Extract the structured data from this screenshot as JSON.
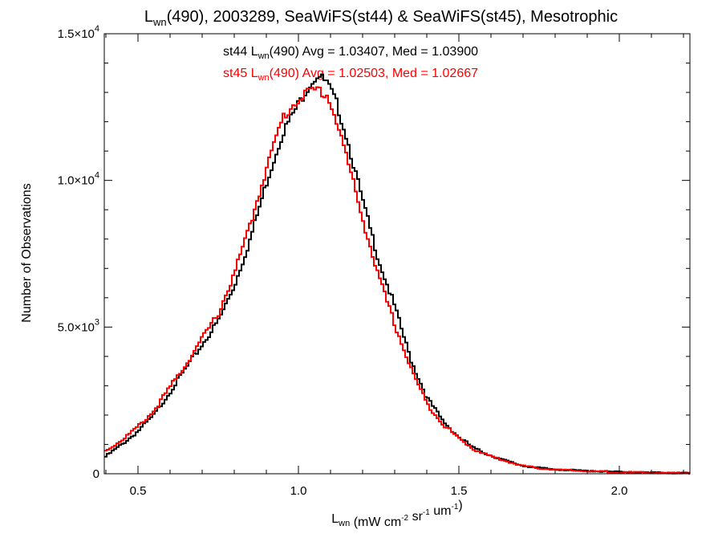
{
  "chart_data": {
    "type": "line",
    "title": {
      "main": "L",
      "sub": "wn",
      "rest": "(490), 2003289, SeaWiFS(st44) & SeaWiFS(st45), Mesotrophic"
    },
    "xlabel": {
      "main": "L",
      "sub": "wn",
      "units": [
        {
          "text": " (mW cm",
          "sup": "-2"
        },
        {
          "text": " sr",
          "sup": "-1"
        },
        {
          "text": " um",
          "sup": "-1"
        },
        {
          "text": ")",
          "sup": ""
        }
      ]
    },
    "ylabel": "Number of Observations",
    "xlim": [
      0.395,
      2.22
    ],
    "ylim": [
      0,
      15000
    ],
    "x_ticks": [
      {
        "value": 0.5,
        "label": "0.5"
      },
      {
        "value": 1.0,
        "label": "1.0"
      },
      {
        "value": 1.5,
        "label": "1.5"
      },
      {
        "value": 2.0,
        "label": "2.0"
      }
    ],
    "y_ticks": [
      {
        "value": 0,
        "mantissa": "0",
        "exp": ""
      },
      {
        "value": 5000,
        "mantissa": "5.0×10",
        "exp": "3"
      },
      {
        "value": 10000,
        "mantissa": "1.0×10",
        "exp": "4"
      },
      {
        "value": 15000,
        "mantissa": "1.5×10",
        "exp": "4"
      }
    ],
    "series": [
      {
        "name": "st44",
        "color": "#000000",
        "annotation": {
          "pre": "st44 L",
          "sub": "wn",
          "post": "(490) Avg = 1.03407, Med = 1.03900"
        },
        "avg": 1.03407,
        "median": 1.039,
        "x": [
          0.395,
          0.45,
          0.5,
          0.55,
          0.6,
          0.65,
          0.7,
          0.75,
          0.8,
          0.85,
          0.9,
          0.95,
          1.0,
          1.03,
          1.06,
          1.09,
          1.12,
          1.15,
          1.2,
          1.25,
          1.3,
          1.35,
          1.4,
          1.45,
          1.5,
          1.55,
          1.6,
          1.65,
          1.7,
          1.75,
          1.8,
          1.9,
          2.0,
          2.1,
          2.22
        ],
        "y": [
          550,
          1000,
          1450,
          2000,
          2800,
          3600,
          4400,
          5200,
          6400,
          8000,
          9900,
          11600,
          12600,
          13200,
          13600,
          13300,
          12600,
          11500,
          9300,
          7300,
          5700,
          3900,
          2600,
          1800,
          1250,
          850,
          620,
          430,
          270,
          200,
          150,
          95,
          60,
          35,
          20
        ]
      },
      {
        "name": "st45",
        "color": "#ff0000",
        "annotation": {
          "pre": "st45 L",
          "sub": "wn",
          "post": "(490) Avg = 1.02503, Med = 1.02667"
        },
        "avg": 1.02503,
        "median": 1.02667,
        "x": [
          0.395,
          0.45,
          0.5,
          0.55,
          0.6,
          0.65,
          0.7,
          0.75,
          0.8,
          0.85,
          0.9,
          0.95,
          1.0,
          1.03,
          1.06,
          1.09,
          1.12,
          1.15,
          1.2,
          1.25,
          1.3,
          1.35,
          1.4,
          1.45,
          1.5,
          1.55,
          1.6,
          1.65,
          1.7,
          1.75,
          1.8,
          1.9,
          2.0,
          2.1,
          2.22
        ],
        "y": [
          750,
          1150,
          1600,
          2150,
          2950,
          3750,
          4600,
          5450,
          6800,
          8500,
          10400,
          12100,
          12800,
          13000,
          13100,
          12900,
          12000,
          10800,
          8700,
          6700,
          5100,
          3600,
          2400,
          1700,
          1200,
          820,
          600,
          420,
          270,
          190,
          140,
          90,
          55,
          32,
          18
        ]
      }
    ]
  }
}
